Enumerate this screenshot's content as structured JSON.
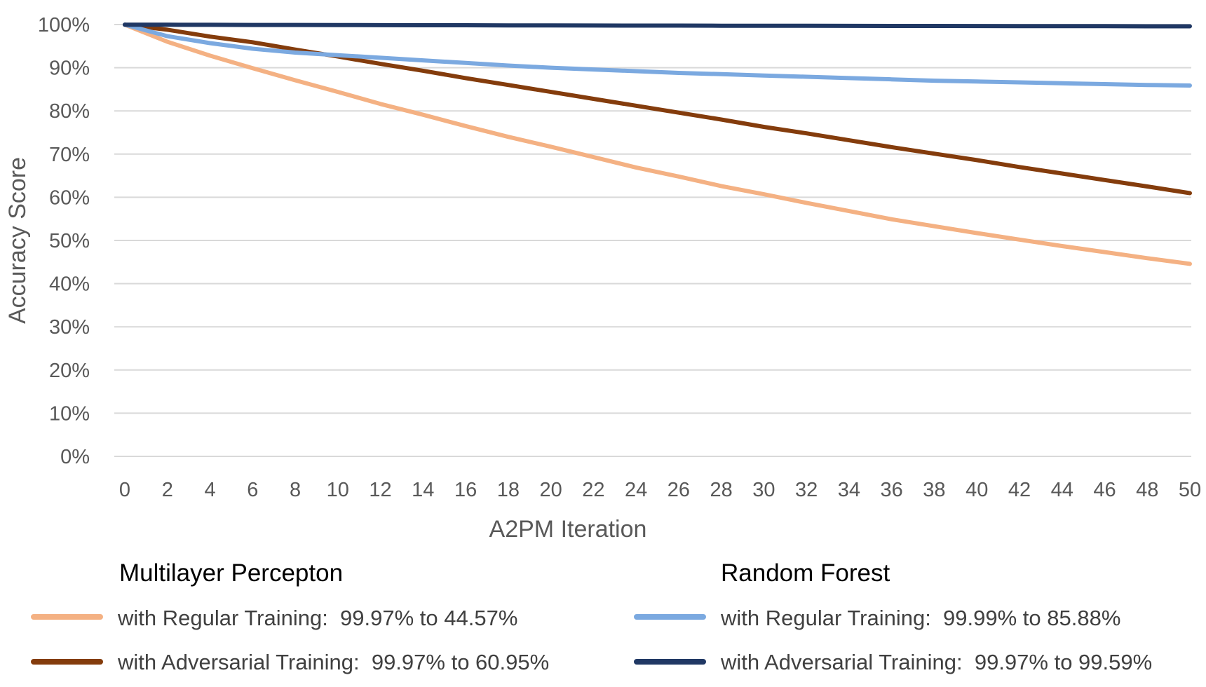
{
  "chart_data": {
    "type": "line",
    "xlabel": "A2PM Iteration",
    "ylabel": "Accuracy Score",
    "xlim": [
      0,
      50
    ],
    "ylim": [
      0,
      100
    ],
    "x_ticks": [
      0,
      2,
      4,
      6,
      8,
      10,
      12,
      14,
      16,
      18,
      20,
      22,
      24,
      26,
      28,
      30,
      32,
      34,
      36,
      38,
      40,
      42,
      44,
      46,
      48,
      50
    ],
    "y_ticks": [
      "0%",
      "10%",
      "20%",
      "30%",
      "40%",
      "50%",
      "60%",
      "70%",
      "80%",
      "90%",
      "100%"
    ],
    "grid": true,
    "legend_position": "bottom",
    "x": [
      0,
      2,
      4,
      6,
      8,
      10,
      12,
      14,
      16,
      18,
      20,
      22,
      24,
      26,
      28,
      30,
      32,
      34,
      36,
      38,
      40,
      42,
      44,
      46,
      48,
      50
    ],
    "legend_groups": [
      {
        "title": "Multilayer Percepton",
        "series": [
          {
            "name": "with Regular Training:  99.97% to 44.57%",
            "color": "#F4B183",
            "values": [
              99.97,
              96.0,
              92.8,
              89.9,
              87.1,
              84.4,
              81.6,
              79.1,
              76.5,
              74.0,
              71.7,
              69.3,
              66.9,
              64.8,
              62.6,
              60.7,
              58.7,
              56.8,
              54.9,
              53.3,
              51.7,
              50.2,
              48.7,
              47.3,
              45.9,
              44.57
            ]
          },
          {
            "name": "with Adversarial Training:  99.97% to 60.95%",
            "color": "#843C0C",
            "values": [
              99.97,
              98.8,
              97.2,
              95.9,
              94.2,
              92.6,
              90.9,
              89.3,
              87.6,
              86.0,
              84.4,
              82.8,
              81.2,
              79.6,
              78.0,
              76.3,
              74.8,
              73.2,
              71.6,
              70.1,
              68.6,
              67.0,
              65.5,
              64.0,
              62.5,
              60.95
            ]
          }
        ]
      },
      {
        "title": "Random Forest",
        "series": [
          {
            "name": "with Regular Training:  99.99% to 85.88%",
            "color": "#7BA9E0",
            "values": [
              99.99,
              97.3,
              95.7,
              94.4,
              93.5,
              92.9,
              92.3,
              91.7,
              91.1,
              90.5,
              90.0,
              89.6,
              89.2,
              88.8,
              88.5,
              88.2,
              87.9,
              87.6,
              87.3,
              87.0,
              86.8,
              86.6,
              86.4,
              86.2,
              86.0,
              85.88
            ]
          },
          {
            "name": "with Adversarial Training:  99.97% to 99.59%",
            "color": "#203864",
            "values": [
              99.97,
              99.95,
              99.93,
              99.91,
              99.9,
              99.88,
              99.86,
              99.84,
              99.83,
              99.81,
              99.79,
              99.78,
              99.76,
              99.75,
              99.73,
              99.72,
              99.71,
              99.69,
              99.68,
              99.67,
              99.66,
              99.65,
              99.63,
              99.62,
              99.6,
              99.59
            ]
          }
        ]
      }
    ]
  }
}
